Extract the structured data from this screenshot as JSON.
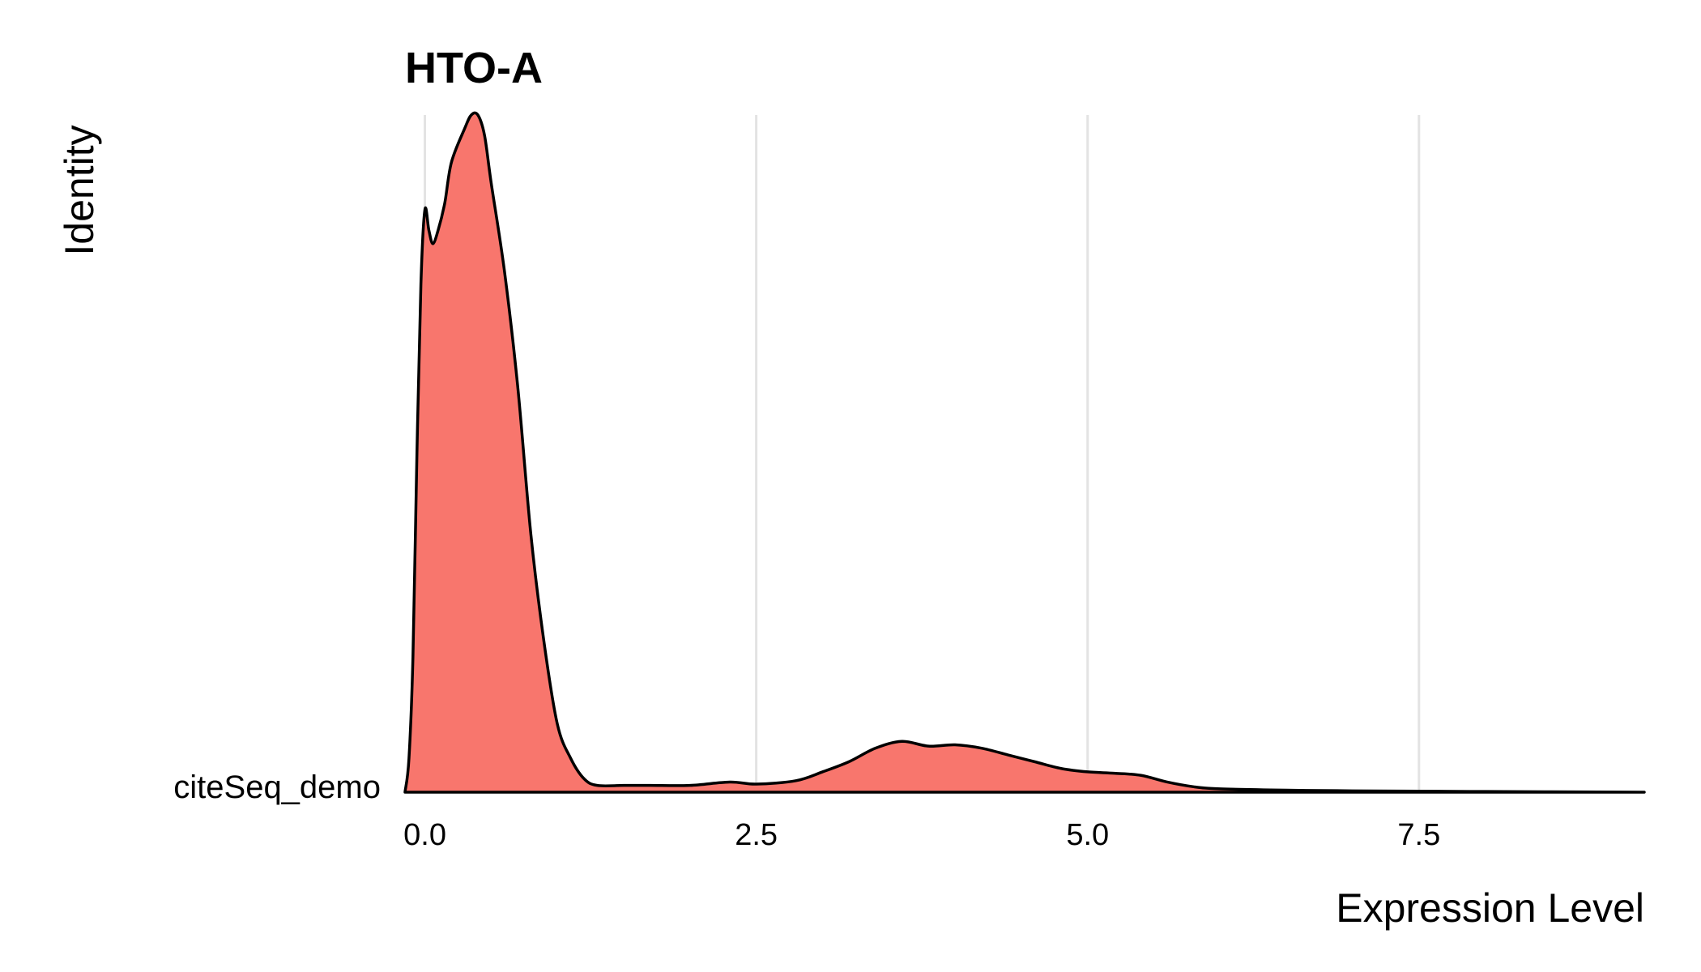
{
  "chart_data": {
    "type": "area",
    "subtype": "ridgeline",
    "title": "HTO-A",
    "xlabel": "Expression Level",
    "ylabel": "Identity",
    "categories": [
      "citeSeq_demo"
    ],
    "xlim": [
      -0.15,
      9.2
    ],
    "x_ticks": [
      {
        "value": 0.0,
        "label": "0.0"
      },
      {
        "value": 2.5,
        "label": "2.5"
      },
      {
        "value": 5.0,
        "label": "5.0"
      },
      {
        "value": 7.5,
        "label": "7.5"
      }
    ],
    "grid": {
      "vertical": true,
      "horizontal": false
    },
    "legend": "none",
    "fill_color": "#F8766D",
    "line_color": "#000000",
    "series": [
      {
        "density": [
          [
            -0.15,
            0.0
          ],
          [
            -0.12,
            0.05
          ],
          [
            -0.09,
            0.2
          ],
          [
            -0.06,
            0.5
          ],
          [
            -0.03,
            0.75
          ],
          [
            0.0,
            0.86
          ],
          [
            0.03,
            0.83
          ],
          [
            0.06,
            0.81
          ],
          [
            0.1,
            0.83
          ],
          [
            0.15,
            0.87
          ],
          [
            0.2,
            0.93
          ],
          [
            0.3,
            0.98
          ],
          [
            0.35,
            1.0
          ],
          [
            0.4,
            1.0
          ],
          [
            0.45,
            0.97
          ],
          [
            0.5,
            0.9
          ],
          [
            0.6,
            0.77
          ],
          [
            0.7,
            0.6
          ],
          [
            0.8,
            0.38
          ],
          [
            0.9,
            0.22
          ],
          [
            1.0,
            0.1
          ],
          [
            1.1,
            0.05
          ],
          [
            1.2,
            0.02
          ],
          [
            1.3,
            0.01
          ],
          [
            1.5,
            0.01
          ],
          [
            1.7,
            0.01
          ],
          [
            2.0,
            0.01
          ],
          [
            2.3,
            0.015
          ],
          [
            2.5,
            0.012
          ],
          [
            2.8,
            0.017
          ],
          [
            3.0,
            0.03
          ],
          [
            3.2,
            0.045
          ],
          [
            3.4,
            0.065
          ],
          [
            3.6,
            0.075
          ],
          [
            3.8,
            0.068
          ],
          [
            4.0,
            0.07
          ],
          [
            4.2,
            0.065
          ],
          [
            4.4,
            0.055
          ],
          [
            4.6,
            0.045
          ],
          [
            4.8,
            0.035
          ],
          [
            5.0,
            0.03
          ],
          [
            5.2,
            0.028
          ],
          [
            5.4,
            0.025
          ],
          [
            5.6,
            0.015
          ],
          [
            5.8,
            0.008
          ],
          [
            6.0,
            0.005
          ],
          [
            6.5,
            0.003
          ],
          [
            7.0,
            0.002
          ],
          [
            8.0,
            0.001
          ],
          [
            9.2,
            0.0
          ]
        ]
      }
    ]
  }
}
